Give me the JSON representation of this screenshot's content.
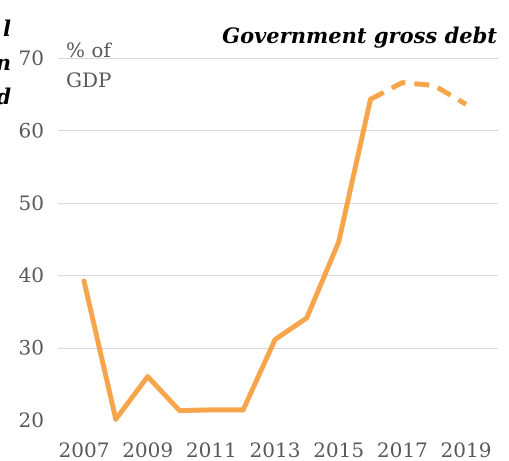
{
  "chart_data": {
    "type": "line",
    "title": "Government gross debt",
    "unit_label": [
      "% of",
      "GDP"
    ],
    "clipped_left_text": [
      "l",
      "n",
      "d"
    ],
    "ylim": [
      20,
      70
    ],
    "yticks": [
      20,
      30,
      40,
      50,
      60,
      70
    ],
    "xticks": [
      2007,
      2009,
      2011,
      2013,
      2015,
      2017,
      2019
    ],
    "grid": true,
    "colors": {
      "line": "#f7a54a",
      "grid": "#d9d9d9",
      "ticks": "#595959"
    },
    "series": [
      {
        "style": "solid",
        "points": [
          {
            "x": 2007,
            "y": 39.2
          },
          {
            "x": 2008,
            "y": 20.1
          },
          {
            "x": 2009,
            "y": 26.0
          },
          {
            "x": 2010,
            "y": 21.3
          },
          {
            "x": 2011,
            "y": 21.4
          },
          {
            "x": 2012,
            "y": 21.4
          },
          {
            "x": 2013,
            "y": 31.1
          },
          {
            "x": 2014,
            "y": 34.1
          },
          {
            "x": 2015,
            "y": 44.6
          },
          {
            "x": 2016,
            "y": 64.3
          }
        ]
      },
      {
        "style": "dashed",
        "points": [
          {
            "x": 2016,
            "y": 64.3
          },
          {
            "x": 2017,
            "y": 66.6
          },
          {
            "x": 2018,
            "y": 66.2
          },
          {
            "x": 2019,
            "y": 63.6
          }
        ]
      }
    ]
  }
}
